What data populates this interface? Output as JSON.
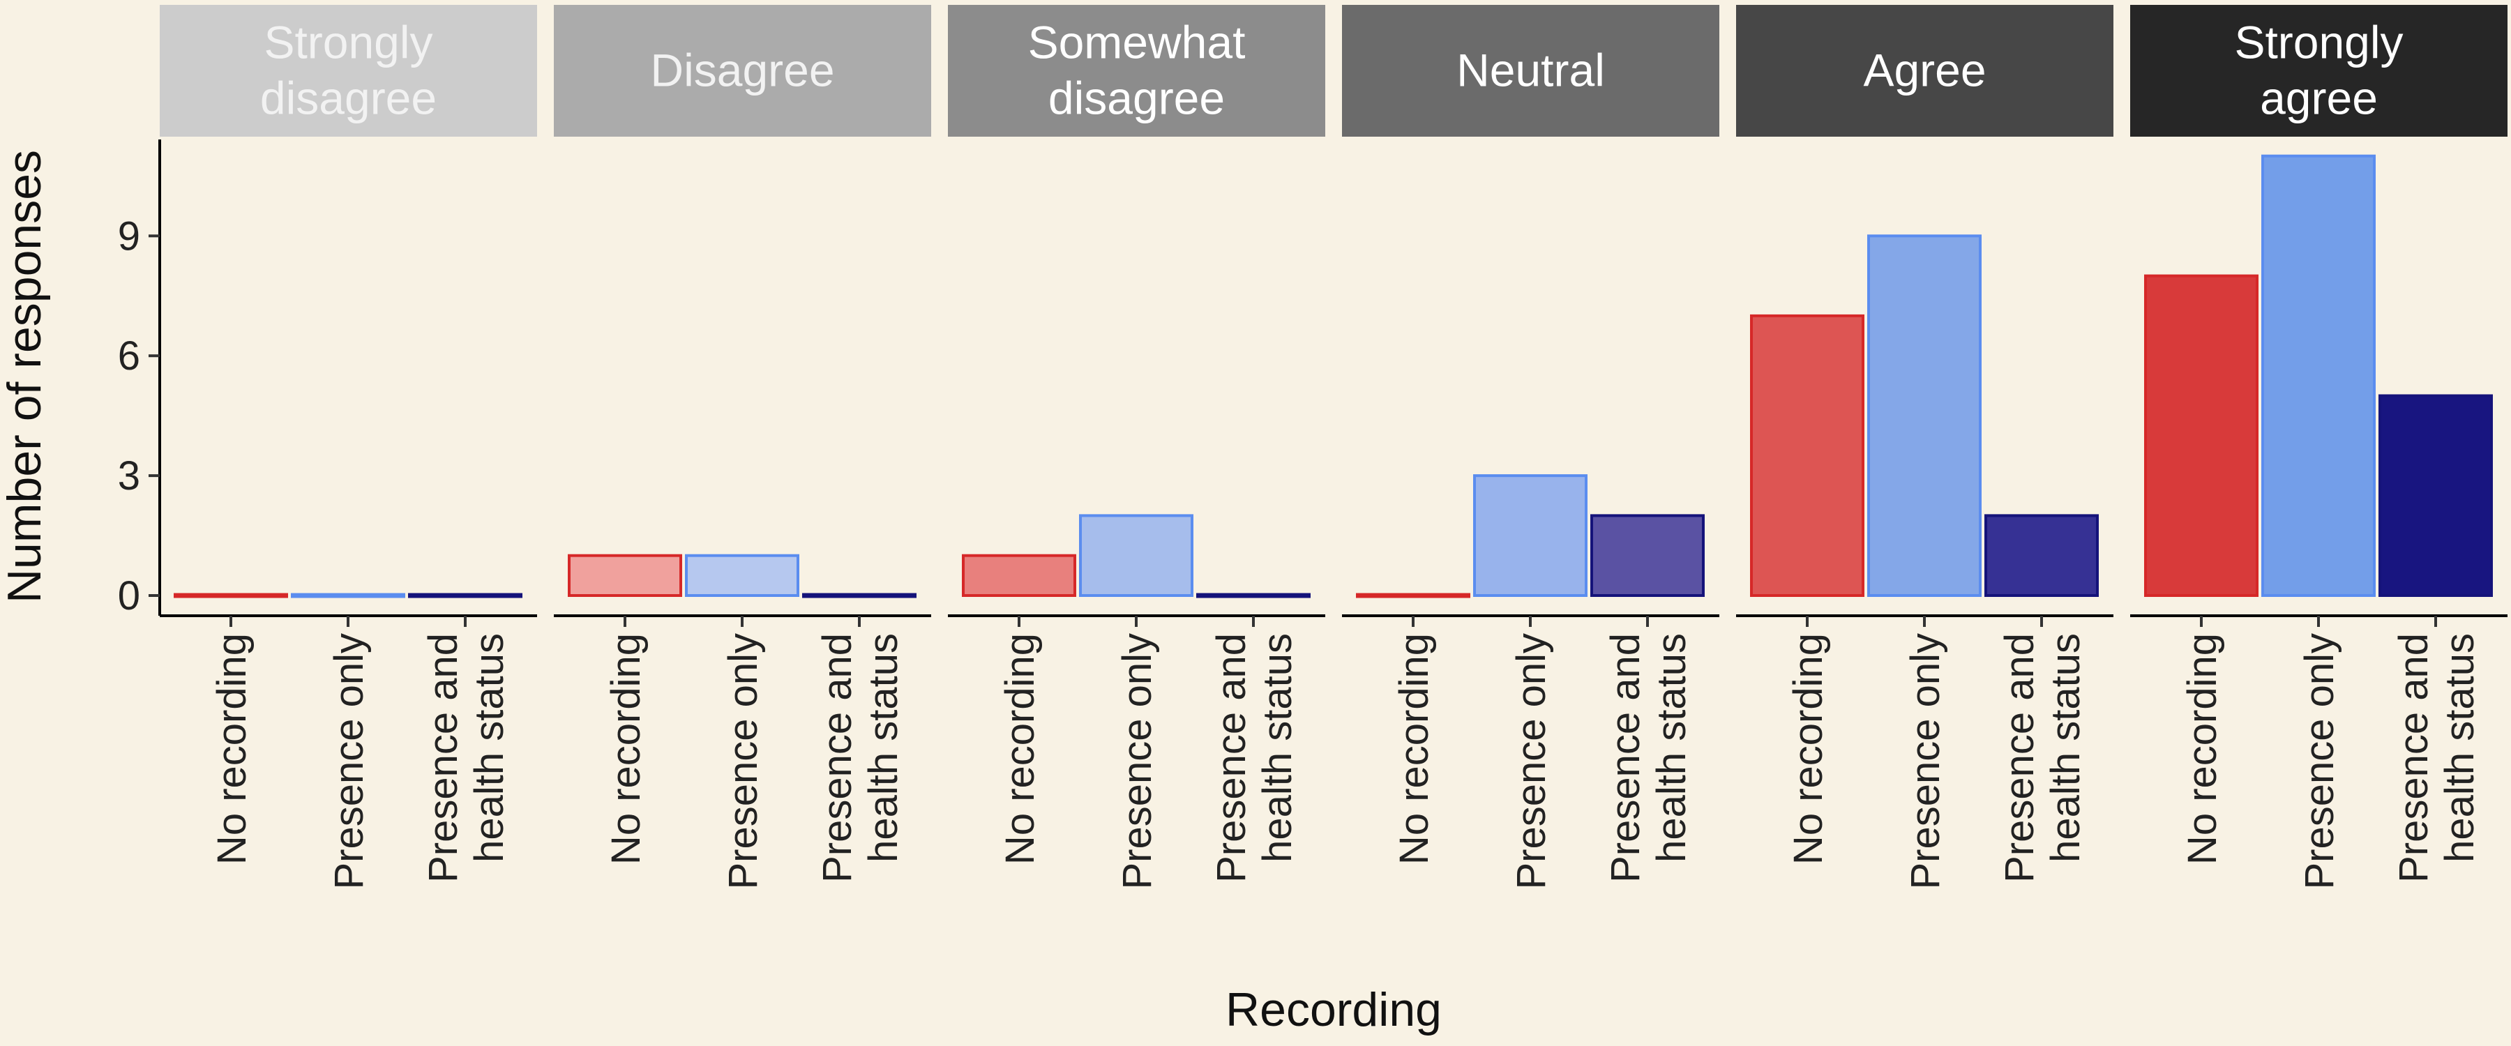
{
  "chart_data": {
    "type": "bar",
    "xlabel": "Recording",
    "ylabel": "Number of responses",
    "ylim": [
      0,
      11
    ],
    "yticks": [
      0,
      3,
      6,
      9
    ],
    "categories": [
      "No recording",
      "Presence only",
      "Presence and\nhealth status"
    ],
    "panels": [
      {
        "name": "Strongly\ndisagree",
        "values": [
          0,
          0,
          0
        ],
        "strip_color": "#cccccc",
        "text_color": "#f2f2f2",
        "fills": [
          "#f3b3b0",
          "#c9d6f3",
          "#a9a9d6"
        ]
      },
      {
        "name": "Disagree",
        "values": [
          1,
          1,
          0
        ],
        "strip_color": "#ababab",
        "text_color": "#f2f2f2",
        "fills": [
          "#f0a19d",
          "#b6c8ef",
          "#9595cc"
        ]
      },
      {
        "name": "Somewhat\ndisagree",
        "values": [
          1,
          2,
          0
        ],
        "strip_color": "#8c8c8c",
        "text_color": "#ffffff",
        "fills": [
          "#e8807d",
          "#a6bdec",
          "#7e7ec0"
        ]
      },
      {
        "name": "Neutral",
        "values": [
          0,
          3,
          2
        ],
        "strip_color": "#6b6b6b",
        "text_color": "#ffffff",
        "fills": [
          "#e36b68",
          "#98b3ec",
          "#5a52a3"
        ]
      },
      {
        "name": "Agree",
        "values": [
          7,
          9,
          2
        ],
        "strip_color": "#474747",
        "text_color": "#ffffff",
        "fills": [
          "#dd5553",
          "#84a7e8",
          "#363194"
        ]
      },
      {
        "name": "Strongly\nagree",
        "values": [
          8,
          11,
          5
        ],
        "strip_color": "#262626",
        "text_color": "#ffffff",
        "fills": [
          "#d83a3a",
          "#739ee9",
          "#181580"
        ]
      }
    ],
    "series_borders": [
      "#d62828",
      "#5b8def",
      "#15137a"
    ],
    "grid": false,
    "legend": "none"
  }
}
